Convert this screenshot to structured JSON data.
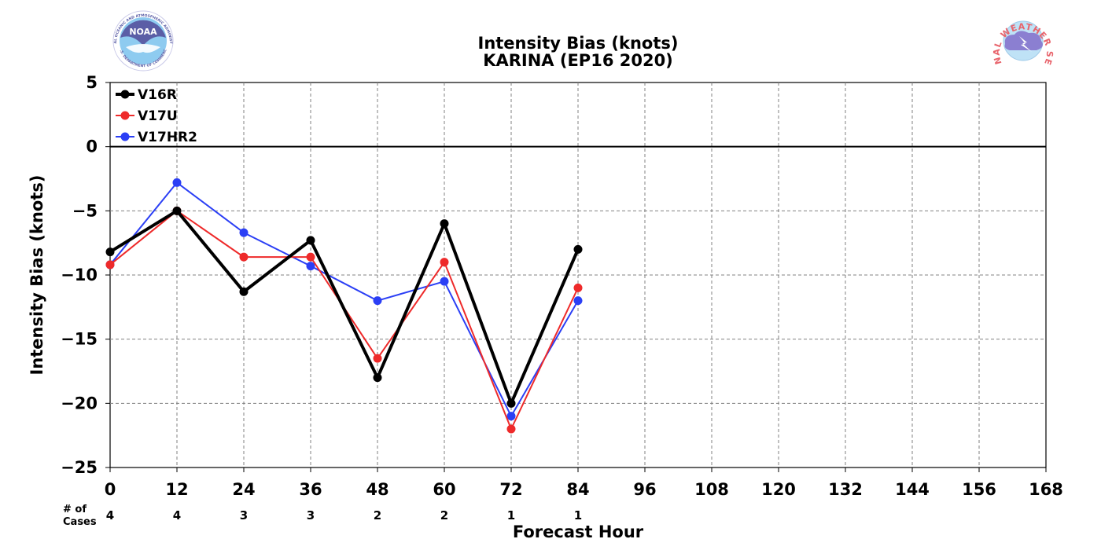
{
  "chart_data": {
    "type": "line",
    "title": "Intensity Bias (knots)",
    "subtitle": "KARINA (EP16 2020)",
    "xlabel": "Forecast Hour",
    "ylabel": "Intensity Bias (knots)",
    "x_ticks": [
      0,
      12,
      24,
      36,
      48,
      60,
      72,
      84,
      96,
      108,
      120,
      132,
      144,
      156,
      168
    ],
    "y_ticks": [
      5,
      0,
      -5,
      -10,
      -15,
      -20,
      -25
    ],
    "y_tick_labels": [
      "5",
      "0",
      "−5",
      "−10",
      "−15",
      "−20",
      "−25"
    ],
    "xlim": [
      0,
      168
    ],
    "ylim": [
      -25,
      5
    ],
    "grid": true,
    "legend_position": "top-left",
    "zero_line": true,
    "series": [
      {
        "name": "V16R",
        "color": "#000000",
        "x": [
          0,
          12,
          24,
          36,
          48,
          60,
          72,
          84
        ],
        "values": [
          -8.2,
          -5,
          -11.3,
          -7.3,
          -18,
          -6,
          -20,
          -8
        ]
      },
      {
        "name": "V17U",
        "color": "#ee2a2a",
        "x": [
          0,
          12,
          24,
          36,
          48,
          60,
          72,
          84
        ],
        "values": [
          -9.2,
          -5,
          -8.6,
          -8.6,
          -16.5,
          -9,
          -22,
          -11
        ]
      },
      {
        "name": "V17HR2",
        "color": "#2b3ff5",
        "x": [
          0,
          12,
          24,
          36,
          48,
          60,
          72,
          84
        ],
        "values": [
          -9.2,
          -2.8,
          -6.7,
          -9.3,
          -12,
          -10.5,
          -21,
          -12
        ]
      }
    ],
    "cases": {
      "label_line1": "# of",
      "label_line2": "Cases",
      "x": [
        0,
        12,
        24,
        36,
        48,
        60,
        72,
        84
      ],
      "values": [
        "4",
        "4",
        "3",
        "3",
        "2",
        "2",
        "1",
        "1"
      ]
    }
  },
  "logos": {
    "left": {
      "name": "NOAA",
      "text": "NOAA",
      "ring_top": "NATIONAL OCEANIC AND ATMOSPHERIC ADMINISTRATION",
      "ring_bottom": "U.S. DEPARTMENT OF COMMERCE",
      "color": "#5b5ea6"
    },
    "right": {
      "name": "National Weather Service",
      "ring_text": "NATIONAL WEATHER SERVICE",
      "color": "#e8646c"
    }
  }
}
